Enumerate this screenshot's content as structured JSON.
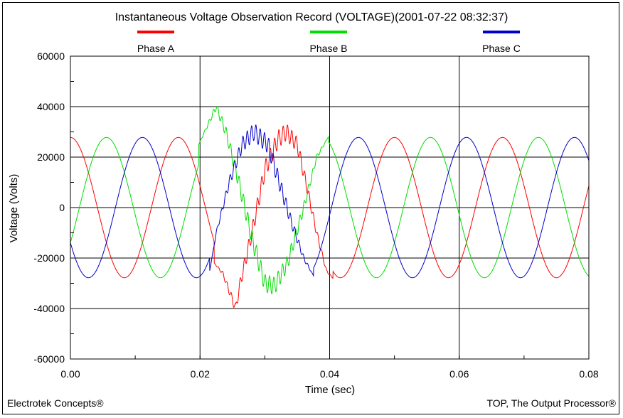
{
  "chart_data": {
    "type": "line",
    "title": "Instantaneous Voltage Observation Record (VOLTAGE)(2001-07-22 08:32:37)",
    "xlabel": "Time (sec)",
    "ylabel": "Voltage (Volts)",
    "xlim": [
      0,
      0.08
    ],
    "ylim": [
      -60000,
      60000
    ],
    "x_ticks": [
      0.0,
      0.02,
      0.04,
      0.06,
      0.08
    ],
    "x_tick_labels": [
      "0.00",
      "0.02",
      "0.04",
      "0.06",
      "0.08"
    ],
    "y_ticks": [
      -60000,
      -40000,
      -20000,
      0,
      20000,
      40000,
      60000
    ],
    "y_tick_labels": [
      "-60000",
      "-40000",
      "-20000",
      "0",
      "20000",
      "40000",
      "60000"
    ],
    "grid": true,
    "legend_position": "top",
    "frequency_hz": 60,
    "series": [
      {
        "name": "Phase A",
        "color": "#ff0000",
        "amplitude": 27800,
        "phase_deg": 90,
        "disturbance": {
          "t_start": 0.0222,
          "t_end": 0.0405,
          "samples": [
            [
              0.0222,
              -22000
            ],
            [
              0.0235,
              -26000
            ],
            [
              0.0255,
              -40000
            ],
            [
              0.0262,
              -30000
            ],
            [
              0.028,
              -10000
            ],
            [
              0.03,
              15000
            ],
            [
              0.032,
              27000
            ],
            [
              0.0333,
              30000
            ],
            [
              0.035,
              25000
            ],
            [
              0.0365,
              8000
            ],
            [
              0.038,
              -10000
            ],
            [
              0.0395,
              -25000
            ],
            [
              0.0405,
              -28000
            ]
          ]
        }
      },
      {
        "name": "Phase B",
        "color": "#00dd00",
        "amplitude": 27800,
        "phase_deg": -30,
        "disturbance": {
          "t_start": 0.0198,
          "t_end": 0.0398,
          "samples": [
            [
              0.0198,
              25000
            ],
            [
              0.0225,
              40000
            ],
            [
              0.024,
              30000
            ],
            [
              0.026,
              10000
            ],
            [
              0.028,
              -12000
            ],
            [
              0.03,
              -30000
            ],
            [
              0.0315,
              -31000
            ],
            [
              0.0335,
              -22000
            ],
            [
              0.036,
              0
            ],
            [
              0.038,
              20000
            ],
            [
              0.0398,
              28000
            ]
          ]
        }
      },
      {
        "name": "Phase C",
        "color": "#0000cc",
        "amplitude": 27800,
        "phase_deg": 210,
        "disturbance": {
          "t_start": 0.0215,
          "t_end": 0.0375,
          "samples": [
            [
              0.0215,
              -25000
            ],
            [
              0.0225,
              -10000
            ],
            [
              0.0245,
              10000
            ],
            [
              0.0265,
              25000
            ],
            [
              0.0283,
              30000
            ],
            [
              0.0305,
              25000
            ],
            [
              0.032,
              12000
            ],
            [
              0.034,
              -5000
            ],
            [
              0.036,
              -20000
            ],
            [
              0.0375,
              -27000
            ]
          ]
        }
      }
    ]
  },
  "footer": {
    "left": "Electrotek Concepts®",
    "right": "TOP, The Output Processor®"
  }
}
